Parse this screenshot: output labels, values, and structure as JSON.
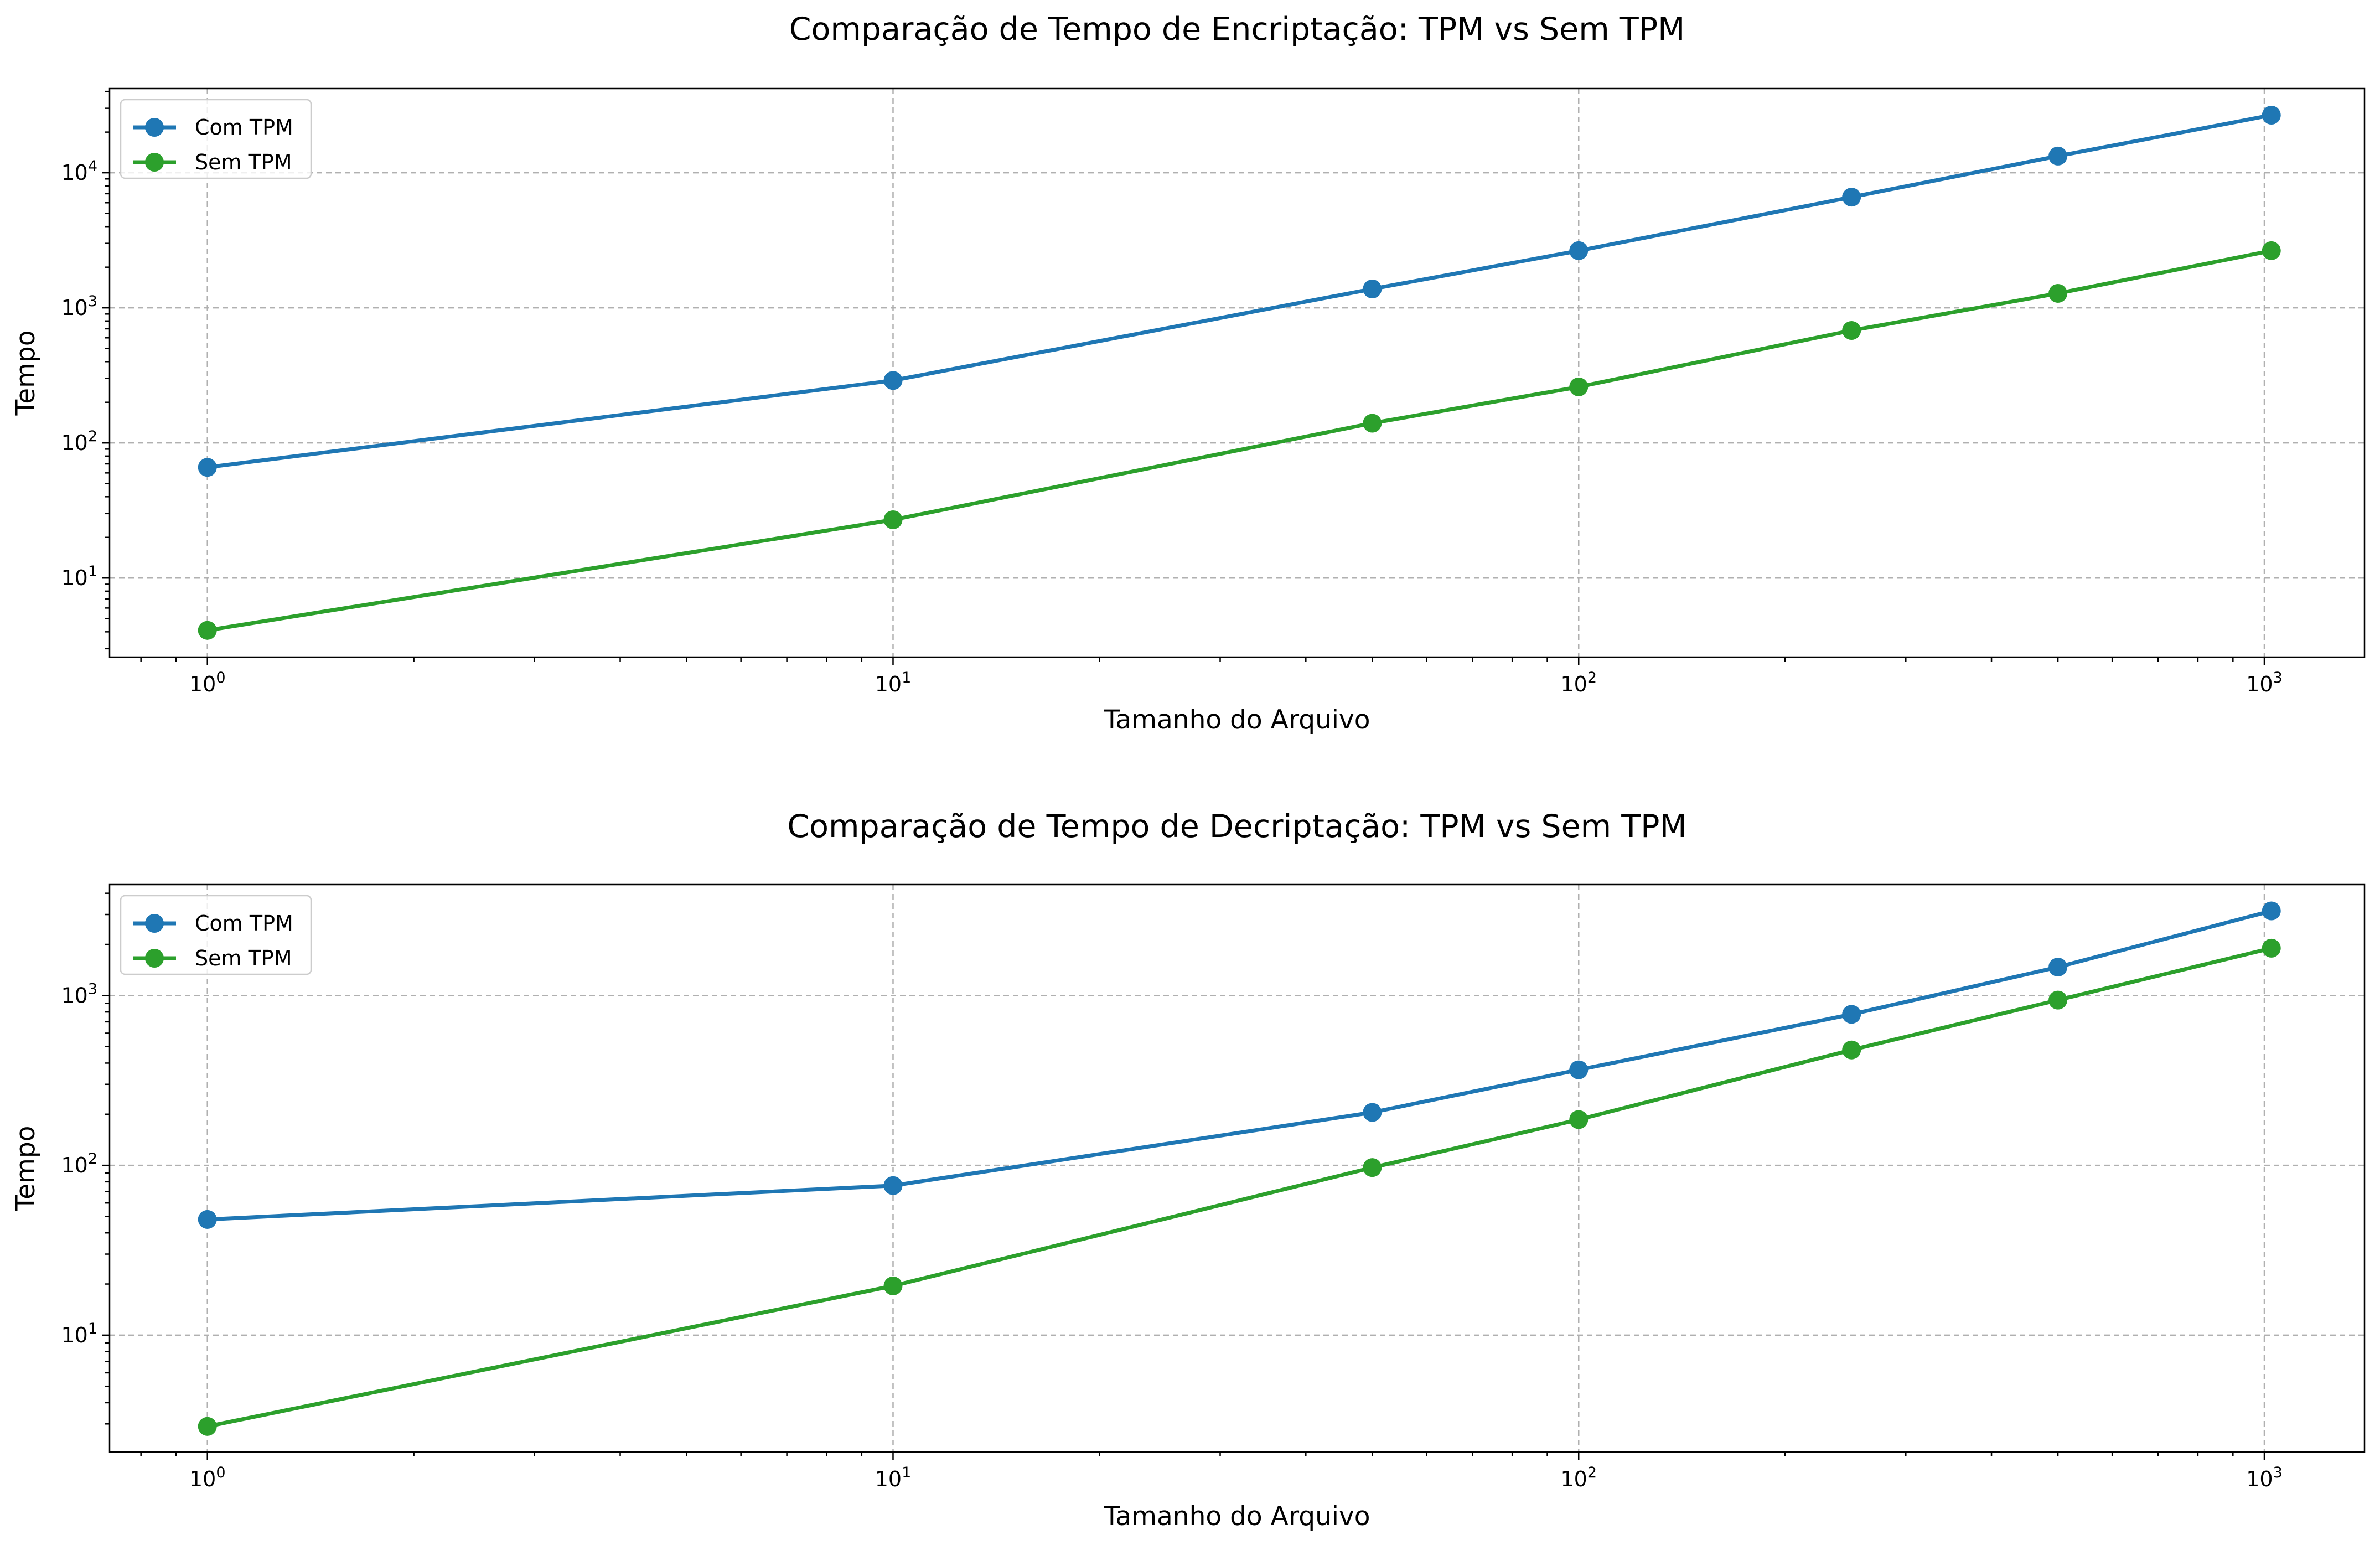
{
  "chart_data": [
    {
      "type": "line",
      "title": "Comparação de Tempo de Encriptação: TPM vs Sem TPM",
      "xlabel": "Tamanho do Arquivo",
      "ylabel": "Tempo",
      "xscale": "log",
      "yscale": "log",
      "xlim": [
        0.72,
        1400
      ],
      "ylim": [
        2.6,
        42000
      ],
      "grid": true,
      "legend_position": "upper-left",
      "x_ticks": [
        {
          "base": "10",
          "exp": "0",
          "value": 1
        },
        {
          "base": "10",
          "exp": "1",
          "value": 10
        },
        {
          "base": "10",
          "exp": "2",
          "value": 100
        },
        {
          "base": "10",
          "exp": "3",
          "value": 1000
        }
      ],
      "y_ticks": [
        {
          "base": "10",
          "exp": "1",
          "value": 10
        },
        {
          "base": "10",
          "exp": "2",
          "value": 100
        },
        {
          "base": "10",
          "exp": "3",
          "value": 1000
        },
        {
          "base": "10",
          "exp": "4",
          "value": 10000
        }
      ],
      "x": [
        1,
        10,
        50,
        100,
        250,
        500,
        1024
      ],
      "series": [
        {
          "name": "Com TPM",
          "color": "#1f77b4",
          "values": [
            66,
            290,
            1380,
            2650,
            6600,
            13300,
            26700
          ]
        },
        {
          "name": "Sem TPM",
          "color": "#2ca02c",
          "values": [
            4.1,
            27,
            140,
            260,
            680,
            1280,
            2650
          ]
        }
      ]
    },
    {
      "type": "line",
      "title": "Comparação de Tempo de Decriptação: TPM vs Sem TPM",
      "xlabel": "Tamanho do Arquivo",
      "ylabel": "Tempo",
      "xscale": "log",
      "yscale": "log",
      "xlim": [
        0.72,
        1400
      ],
      "ylim": [
        2.05,
        4500
      ],
      "grid": true,
      "legend_position": "upper-left",
      "x_ticks": [
        {
          "base": "10",
          "exp": "0",
          "value": 1
        },
        {
          "base": "10",
          "exp": "1",
          "value": 10
        },
        {
          "base": "10",
          "exp": "2",
          "value": 100
        },
        {
          "base": "10",
          "exp": "3",
          "value": 1000
        }
      ],
      "y_ticks": [
        {
          "base": "10",
          "exp": "1",
          "value": 10
        },
        {
          "base": "10",
          "exp": "2",
          "value": 100
        },
        {
          "base": "10",
          "exp": "3",
          "value": 1000
        }
      ],
      "x": [
        1,
        10,
        50,
        100,
        250,
        500,
        1024
      ],
      "series": [
        {
          "name": "Com TPM",
          "color": "#1f77b4",
          "values": [
            48,
            76,
            205,
            365,
            775,
            1470,
            3150
          ]
        },
        {
          "name": "Sem TPM",
          "color": "#2ca02c",
          "values": [
            2.9,
            19.5,
            97,
            186,
            478,
            940,
            1900
          ]
        }
      ]
    }
  ]
}
